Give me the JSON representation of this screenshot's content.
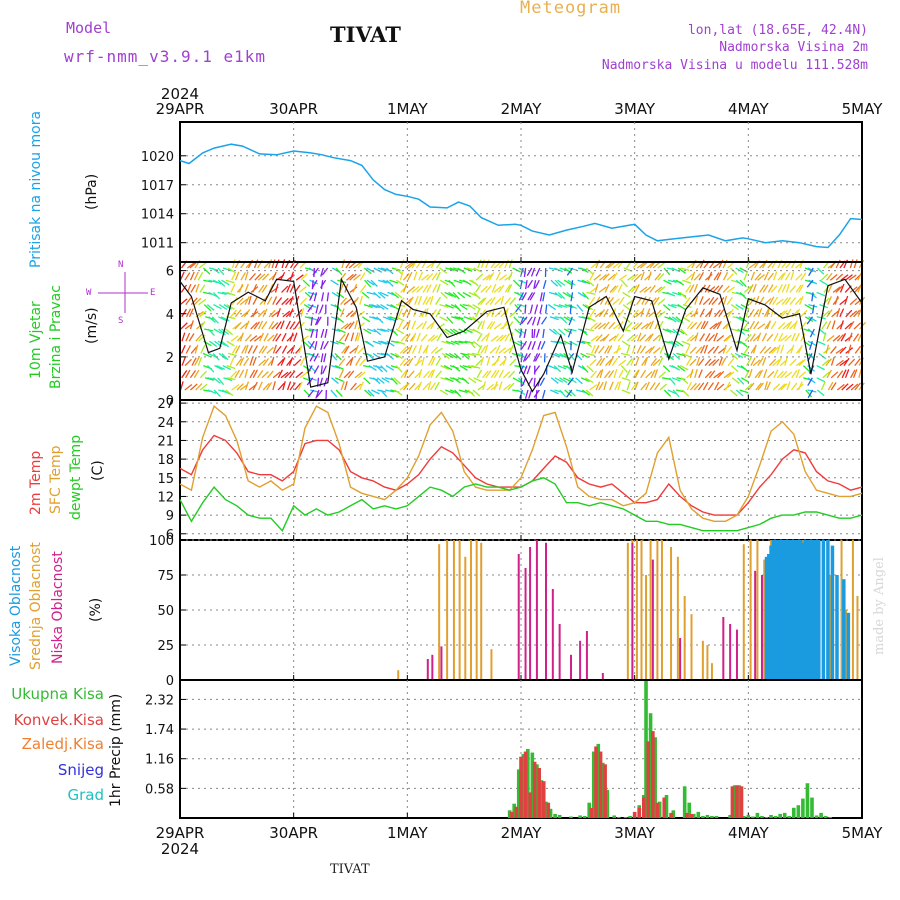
{
  "header": {
    "model_label": "Model",
    "model_value": "wrf-nmm_v3.9.1 e1km",
    "station": "TIVAT",
    "product": "Meteogram",
    "lonlat": "lon,lat (18.65E, 42.4N)",
    "elevation": "Nadmorska Visina 2m",
    "model_elevation": "Nadmorska Visina u modelu 111.528m"
  },
  "footer": {
    "station": "TIVAT",
    "watermark": "made by Angel"
  },
  "colors": {
    "pressure": "#1aa3e8",
    "temp2m": "#ef3b3b",
    "sfctemp": "#e0a030",
    "dewpt": "#22cc22",
    "high_cloud": "#1a9be0",
    "mid_cloud": "#e0a030",
    "low_cloud": "#d0208a",
    "total_precip": "#33bb33",
    "conv_precip": "#e04040",
    "frozen": "#f08030",
    "snow": "#3030e0",
    "graupel": "#20c0c0",
    "wind_legend": "#b030d0",
    "title": "#111111",
    "model": "#a040d0",
    "product": "#e8b050",
    "grid": "#888888"
  },
  "chart_data": [
    {
      "type": "line",
      "panel": "pressure",
      "ylabel_left": "Pritisak na nivou mora",
      "ylabel_right": "(hPa)",
      "year_label": "2024",
      "date_labels": [
        "29APR",
        "30APR",
        "1MAY",
        "2MAY",
        "3MAY",
        "4MAY",
        "5MAY"
      ],
      "ylim": [
        1009,
        1023.5
      ],
      "yticks": [
        1011,
        1014,
        1017,
        1020
      ],
      "grid": true,
      "series": [
        {
          "x_days": [
            0,
            0.08,
            0.2,
            0.3,
            0.45,
            0.55,
            0.7,
            0.85,
            1.0,
            1.15,
            1.25,
            1.35,
            1.5,
            1.6,
            1.7,
            1.8,
            1.9,
            2.0,
            2.1,
            2.2,
            2.35,
            2.45,
            2.55,
            2.65,
            2.8,
            2.95,
            3.0,
            3.1,
            3.25,
            3.4,
            3.55,
            3.65,
            3.8,
            3.95,
            4.0,
            4.1,
            4.2,
            4.35,
            4.5,
            4.65,
            4.8,
            4.95,
            5.0,
            5.15,
            5.3,
            5.45,
            5.6,
            5.7,
            5.8,
            5.9,
            6.0
          ],
          "values": [
            1019.5,
            1019.2,
            1020.3,
            1020.8,
            1021.2,
            1021.0,
            1020.2,
            1020.1,
            1020.5,
            1020.3,
            1020.1,
            1019.8,
            1019.5,
            1019.0,
            1017.5,
            1016.5,
            1016.0,
            1015.8,
            1015.5,
            1014.7,
            1014.6,
            1015.2,
            1014.8,
            1013.6,
            1012.8,
            1012.9,
            1012.8,
            1012.2,
            1011.8,
            1012.3,
            1012.7,
            1013.0,
            1012.5,
            1012.8,
            1012.9,
            1011.8,
            1011.2,
            1011.4,
            1011.6,
            1011.8,
            1011.2,
            1011.5,
            1011.4,
            1011.0,
            1011.2,
            1011.0,
            1010.6,
            1010.5,
            1011.8,
            1013.5,
            1013.4
          ]
        }
      ]
    },
    {
      "type": "line",
      "panel": "wind",
      "ylabel_left": [
        "10m Vjetar",
        "Brzina i Pravac"
      ],
      "ylabel_right": "(m/s)",
      "compass": {
        "north": "N",
        "south": "S",
        "west": "W",
        "east": "E"
      },
      "ylim": [
        0,
        6.4
      ],
      "yticks": [
        0,
        2,
        4,
        6
      ],
      "grid": true,
      "series": [
        {
          "name": "wind speed",
          "x_days": [
            0,
            0.1,
            0.25,
            0.35,
            0.45,
            0.6,
            0.75,
            0.85,
            1.0,
            1.15,
            1.3,
            1.42,
            1.55,
            1.65,
            1.8,
            1.95,
            2.05,
            2.2,
            2.35,
            2.5,
            2.7,
            2.85,
            3.0,
            3.1,
            3.2,
            3.35,
            3.45,
            3.6,
            3.75,
            3.9,
            4.0,
            4.15,
            4.3,
            4.45,
            4.6,
            4.75,
            4.9,
            5.0,
            5.15,
            5.3,
            5.45,
            5.55,
            5.7,
            5.85,
            6.0
          ],
          "values": [
            5.5,
            4.8,
            2.2,
            2.4,
            4.5,
            5.0,
            4.6,
            5.6,
            5.5,
            0.6,
            0.8,
            5.6,
            4.3,
            1.8,
            2.0,
            4.6,
            4.2,
            4.0,
            2.9,
            3.2,
            4.1,
            4.3,
            1.4,
            0.4,
            1.2,
            3.0,
            1.3,
            4.3,
            4.8,
            3.2,
            4.8,
            4.6,
            1.9,
            4.2,
            5.2,
            4.9,
            2.3,
            4.7,
            4.4,
            3.8,
            4.0,
            1.2,
            5.3,
            5.6,
            4.5
          ]
        }
      ]
    },
    {
      "type": "line",
      "panel": "temperature",
      "ylabel_left": [
        "2m Temp",
        "SFC Temp",
        "dewpt Temp"
      ],
      "ylabel_right": "(C)",
      "ylim": [
        5,
        27.5
      ],
      "yticks": [
        6,
        9,
        12,
        15,
        18,
        21,
        24,
        27
      ],
      "grid": true,
      "x_days": [
        0,
        0.1,
        0.2,
        0.3,
        0.4,
        0.5,
        0.6,
        0.7,
        0.8,
        0.9,
        1.0,
        1.1,
        1.2,
        1.3,
        1.4,
        1.5,
        1.6,
        1.7,
        1.8,
        1.9,
        2.0,
        2.1,
        2.2,
        2.3,
        2.4,
        2.5,
        2.6,
        2.7,
        2.8,
        2.9,
        3.0,
        3.1,
        3.2,
        3.3,
        3.4,
        3.5,
        3.6,
        3.7,
        3.8,
        3.9,
        4.0,
        4.1,
        4.2,
        4.3,
        4.4,
        4.5,
        4.6,
        4.7,
        4.8,
        4.9,
        5.0,
        5.1,
        5.2,
        5.3,
        5.4,
        5.5,
        5.6,
        5.7,
        5.8,
        5.9,
        6.0
      ],
      "series": [
        {
          "name": "2m Temp",
          "values": [
            16.5,
            15.5,
            19.5,
            21.8,
            21.0,
            19.0,
            16.0,
            15.5,
            15.5,
            14.5,
            16.0,
            20.5,
            21.0,
            21.0,
            19.5,
            16.0,
            15.0,
            14.5,
            13.5,
            13.0,
            14.0,
            15.5,
            18.0,
            20.0,
            19.0,
            17.0,
            15.0,
            14.0,
            13.5,
            13.5,
            13.5,
            14.5,
            16.5,
            18.5,
            17.5,
            15.0,
            14.0,
            13.5,
            14.0,
            12.5,
            11.0,
            11.0,
            11.5,
            14.0,
            12.0,
            10.5,
            9.5,
            9.0,
            9.0,
            9.0,
            11.0,
            13.5,
            15.5,
            18.0,
            19.5,
            19.0,
            16.0,
            14.5,
            14.0,
            13.0,
            13.5
          ]
        },
        {
          "name": "SFC Temp",
          "values": [
            14.0,
            13.0,
            21.5,
            26.5,
            25.0,
            21.0,
            14.5,
            13.5,
            14.5,
            13.0,
            14.0,
            23.0,
            26.5,
            25.5,
            20.5,
            13.5,
            12.5,
            12.0,
            11.5,
            13.0,
            15.0,
            18.5,
            23.5,
            25.5,
            22.5,
            16.0,
            13.5,
            13.0,
            13.0,
            13.0,
            15.0,
            19.5,
            25.0,
            25.5,
            20.0,
            13.5,
            12.0,
            11.5,
            11.5,
            10.5,
            11.0,
            12.5,
            19.0,
            21.5,
            13.0,
            10.0,
            8.5,
            8.0,
            8.0,
            9.0,
            12.0,
            17.0,
            22.5,
            24.0,
            22.0,
            16.0,
            13.0,
            12.5,
            12.0,
            12.0,
            12.5
          ]
        },
        {
          "name": "dewpt Temp",
          "values": [
            11.5,
            8.0,
            11.0,
            13.5,
            11.5,
            10.5,
            9.0,
            8.5,
            8.5,
            6.5,
            10.5,
            9.0,
            10.0,
            9.0,
            9.5,
            10.5,
            11.5,
            10.0,
            10.5,
            10.0,
            10.5,
            12.0,
            13.5,
            13.0,
            12.0,
            13.5,
            14.0,
            13.5,
            13.5,
            13.0,
            13.5,
            14.5,
            15.0,
            14.0,
            11.0,
            11.0,
            10.5,
            11.0,
            10.5,
            10.0,
            9.0,
            8.0,
            8.0,
            7.5,
            7.5,
            7.0,
            6.5,
            6.5,
            6.5,
            6.5,
            7.0,
            7.5,
            8.5,
            9.0,
            9.0,
            9.5,
            9.5,
            9.0,
            8.5,
            8.5,
            9.0
          ]
        }
      ]
    },
    {
      "type": "bar",
      "panel": "cloud",
      "ylabel_left": [
        "Visoka Oblacnost",
        "Srednja Oblacnost",
        "Niska Oblacnost"
      ],
      "ylabel_right": "(%)",
      "ylim": [
        0,
        100
      ],
      "yticks": [
        0,
        25,
        50,
        75,
        100
      ],
      "grid": true,
      "series": [
        {
          "name": "Srednja Oblacnost",
          "x_days": [
            1.92,
            2.28,
            2.35,
            2.41,
            2.46,
            2.51,
            2.56,
            2.61,
            2.65,
            2.74,
            3.22,
            3.94,
            3.98,
            4.02,
            4.06,
            4.1,
            4.14,
            4.2,
            4.24,
            4.32,
            4.38,
            4.44,
            4.5,
            4.6,
            4.64,
            4.68,
            4.96,
            5.02,
            5.08,
            5.14,
            5.2,
            5.26,
            5.34,
            5.4,
            5.48,
            5.54,
            5.6,
            5.66,
            5.72,
            5.78,
            5.82,
            5.86,
            5.92,
            5.96
          ],
          "values": [
            7,
            97,
            100,
            100,
            100,
            88,
            100,
            100,
            98,
            22,
            82,
            98,
            100,
            100,
            100,
            75,
            100,
            100,
            100,
            95,
            88,
            60,
            47,
            28,
            25,
            12,
            97,
            100,
            100,
            86,
            100,
            90,
            42,
            100,
            100,
            88,
            100,
            100,
            75,
            50,
            100,
            50,
            100,
            60
          ]
        },
        {
          "name": "Niska Oblacnost",
          "x_days": [
            2.18,
            2.22,
            2.3,
            2.98,
            3.04,
            3.08,
            3.14,
            3.22,
            3.28,
            3.34,
            3.44,
            3.52,
            3.58,
            3.72,
            3.98,
            4.16,
            4.4,
            4.78,
            4.84,
            4.9,
            5.06,
            5.12,
            5.22,
            5.26,
            5.34,
            5.4,
            5.48,
            5.54
          ],
          "values": [
            15,
            18,
            24,
            90,
            80,
            95,
            100,
            98,
            65,
            40,
            18,
            28,
            35,
            5,
            98,
            86,
            30,
            45,
            40,
            36,
            78,
            75,
            40,
            40,
            88,
            88,
            45,
            45
          ]
        },
        {
          "name": "Visoka Oblacnost",
          "x_days": [
            5.16,
            5.18,
            5.2,
            5.22,
            5.24,
            5.26,
            5.28,
            5.3,
            5.32,
            5.34,
            5.36,
            5.38,
            5.4,
            5.42,
            5.44,
            5.46,
            5.48,
            5.5,
            5.52,
            5.54,
            5.56,
            5.58,
            5.6,
            5.62,
            5.66,
            5.7,
            5.74,
            5.78,
            5.84,
            5.88,
            5.92
          ],
          "values": [
            88,
            90,
            96,
            100,
            100,
            100,
            100,
            100,
            100,
            100,
            100,
            100,
            100,
            100,
            100,
            100,
            98,
            100,
            100,
            100,
            100,
            100,
            100,
            100,
            100,
            100,
            96,
            75,
            72,
            48,
            0
          ]
        }
      ]
    },
    {
      "type": "bar",
      "panel": "precip",
      "ylabel_left": [
        "Ukupna Kisa",
        "Konvek.Kisa",
        "Zaledj.Kisa",
        "Snijeg",
        "Grad"
      ],
      "ylabel_right": "1hr Precip (mm)",
      "ylim": [
        0,
        2.7
      ],
      "yticks": [
        0.58,
        1.16,
        1.74,
        2.32
      ],
      "grid": true,
      "date_labels": [
        "29APR",
        "30APR",
        "1MAY",
        "2MAY",
        "3MAY",
        "4MAY",
        "5MAY"
      ],
      "year_label": "2024",
      "series": [
        {
          "name": "Ukupna Kisa",
          "x_days": [
            2.9,
            2.94,
            2.98,
            3.02,
            3.06,
            3.1,
            3.14,
            3.18,
            3.22,
            3.26,
            3.3,
            3.34,
            3.44,
            3.52,
            3.56,
            3.6,
            3.64,
            3.68,
            3.72,
            3.76,
            3.82,
            3.86,
            3.92,
            3.96,
            4.0,
            4.04,
            4.08,
            4.1,
            4.14,
            4.18,
            4.22,
            4.28,
            4.34,
            4.44,
            4.48,
            4.52,
            4.56,
            4.6,
            4.64,
            4.68,
            4.72,
            4.84,
            4.88,
            4.92,
            4.96,
            5.0,
            5.04,
            5.08,
            5.12,
            5.16,
            5.2,
            5.24,
            5.28,
            5.32,
            5.36,
            5.4,
            5.44,
            5.48,
            5.52,
            5.56,
            5.6,
            5.64,
            5.68,
            5.72
          ],
          "values": [
            0.15,
            0.28,
            0.95,
            1.25,
            1.35,
            1.28,
            1.05,
            0.74,
            0.32,
            0.18,
            0.08,
            0.06,
            0.03,
            0.05,
            0.04,
            0.3,
            1.3,
            1.45,
            1.08,
            0.55,
            0.05,
            0.02,
            0.02,
            0.04,
            0.05,
            0.25,
            0.45,
            2.68,
            2.05,
            1.58,
            0.32,
            0.45,
            0.15,
            0.62,
            0.3,
            0.08,
            0.12,
            0.04,
            0.06,
            0.04,
            0.04,
            0.06,
            0.64,
            0.64,
            0.04,
            0.06,
            0.03,
            0.1,
            0.04,
            0.02,
            0.06,
            0.04,
            0.08,
            0.1,
            0.04,
            0.2,
            0.25,
            0.38,
            0.68,
            0.4,
            0.05,
            0.1,
            0.04,
            0.02
          ]
        },
        {
          "name": "Konvek.Kisa",
          "x_days": [
            2.92,
            2.96,
            3.0,
            3.04,
            3.08,
            3.12,
            3.16,
            3.2,
            3.24,
            3.62,
            3.66,
            3.7,
            3.74,
            4.0,
            4.04,
            4.08,
            4.12,
            4.16,
            4.2,
            4.26,
            4.32,
            4.46,
            4.5,
            4.86,
            4.9,
            4.94
          ],
          "values": [
            0.12,
            0.22,
            1.2,
            1.3,
            0.5,
            1.1,
            0.98,
            0.72,
            0.3,
            0.2,
            1.4,
            1.3,
            1.05,
            0.12,
            0.2,
            0.4,
            1.5,
            1.7,
            0.3,
            0.4,
            0.1,
            0.1,
            0.08,
            0.62,
            0.64,
            0.62
          ]
        },
        {
          "name": "Zaledj.Kisa",
          "x_days": [],
          "values": []
        },
        {
          "name": "Snijeg",
          "x_days": [],
          "values": []
        },
        {
          "name": "Grad",
          "x_days": [],
          "values": []
        }
      ]
    }
  ]
}
